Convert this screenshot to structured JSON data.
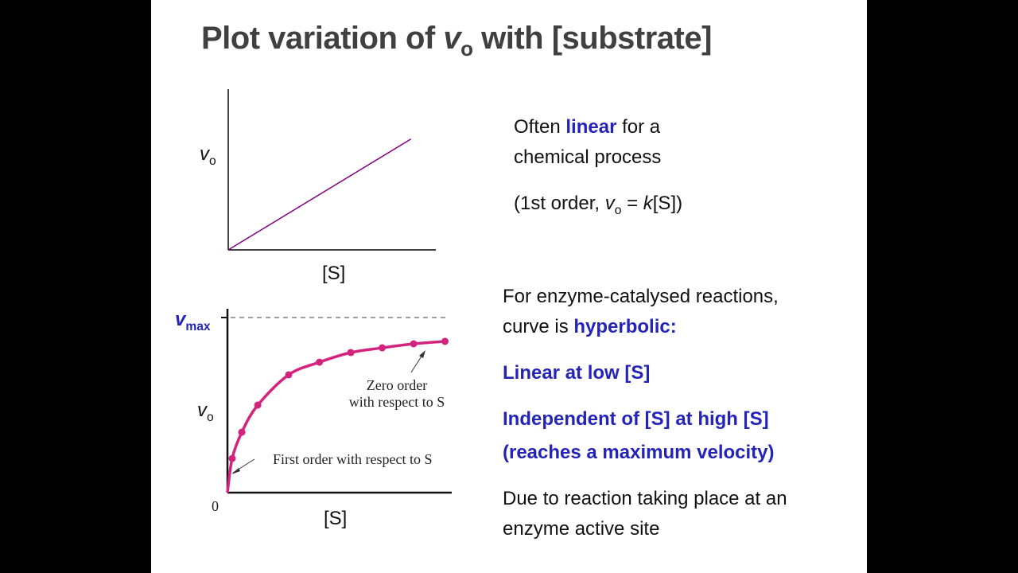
{
  "slide": {
    "title_prefix": "Plot variation of ",
    "title_var": "v",
    "title_sub": "o",
    "title_suffix": " with [substrate]",
    "colors": {
      "emphasis": "#2424b8",
      "linear_line": "#800080",
      "hyperbolic_curve": "#d4237f",
      "title": "#404040"
    },
    "right_top": {
      "line1_a": "Often ",
      "line1_b": "linear",
      "line1_c": " for a",
      "line2": "chemical process",
      "line3_a": "(1st order, ",
      "line3_v": "v",
      "line3_sub": "o",
      "line3_b": " = ",
      "line3_k": "k",
      "line3_c": "[S])"
    },
    "right_bottom": {
      "line1": "For enzyme-catalysed reactions,",
      "line2_a": "curve is ",
      "line2_b": "hyperbolic:",
      "line3": "Linear at low [S]",
      "line4": "Independent of [S] at high [S]",
      "line5": "(reaches a maximum velocity)",
      "line6": "Due to reaction taking place at an",
      "line7": "enzyme active site"
    }
  },
  "chart_data": [
    {
      "type": "line",
      "xlabel": "[S]",
      "ylabel_var": "v",
      "ylabel_sub": "o",
      "x": [
        0,
        8.1
      ],
      "y": [
        0,
        0.69
      ],
      "xlim": [
        0,
        9.2
      ],
      "ylim": [
        0,
        1
      ],
      "grid": false
    },
    {
      "type": "scatter",
      "xlabel": "[S]",
      "ylabel_var": "v",
      "ylabel_sub": "o",
      "vmax_label_var": "v",
      "vmax_label_sub": "max",
      "origin_label": "0",
      "x": [
        0.21,
        0.64,
        1.35,
        2.73,
        4.1,
        5.5,
        6.9,
        8.3,
        9.7
      ],
      "y": [
        0.195,
        0.345,
        0.5,
        0.673,
        0.745,
        0.8,
        0.827,
        0.85,
        0.864
      ],
      "vmax": 1,
      "xlim": [
        0,
        10
      ],
      "ylim": [
        0,
        1.05
      ],
      "grid": false,
      "annotations": {
        "first_order": "First order with respect to S",
        "zero_order_1": "Zero order",
        "zero_order_2": "with respect to S"
      }
    }
  ]
}
